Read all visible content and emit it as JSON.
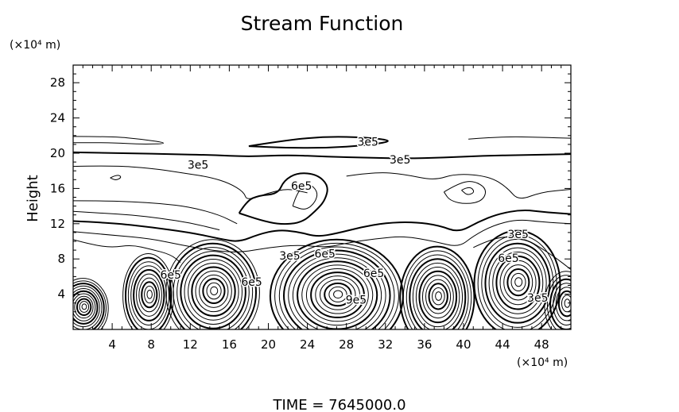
{
  "chart_data": {
    "type": "contour",
    "title": "Stream Function",
    "ylabel": "Height",
    "x_unit": "(×10⁴ m)",
    "y_unit": "(×10⁴ m)",
    "xlim": [
      0,
      51
    ],
    "ylim": [
      0,
      30
    ],
    "x_ticks": [
      4,
      8,
      12,
      16,
      20,
      24,
      28,
      32,
      36,
      40,
      44,
      48
    ],
    "y_ticks": [
      4,
      8,
      12,
      16,
      20,
      24,
      28
    ],
    "contour_labels": [
      {
        "text": "3e5",
        "x": 30.2,
        "y": 21.3
      },
      {
        "text": "3e5",
        "x": 12.8,
        "y": 18.7
      },
      {
        "text": "3e5",
        "x": 33.5,
        "y": 19.3
      },
      {
        "text": "6e5",
        "x": 23.4,
        "y": 16.3
      },
      {
        "text": "3e5",
        "x": 22.2,
        "y": 8.4
      },
      {
        "text": "6e5",
        "x": 25.8,
        "y": 8.6
      },
      {
        "text": "6e5",
        "x": 44.6,
        "y": 8.1
      },
      {
        "text": "3e5",
        "x": 45.6,
        "y": 10.8
      },
      {
        "text": "6e5",
        "x": 18.3,
        "y": 5.4
      },
      {
        "text": "6e5",
        "x": 30.8,
        "y": 6.4
      },
      {
        "text": "6e5",
        "x": 10.0,
        "y": 6.2
      },
      {
        "text": "9e5",
        "x": 29.0,
        "y": 3.4
      },
      {
        "text": "3e5",
        "x": 47.6,
        "y": 3.6
      }
    ],
    "vortices": [
      {
        "x": 1.0,
        "y": 2.4,
        "rx": 2.6,
        "ry": 3.4,
        "n": 11
      },
      {
        "x": 7.7,
        "y": 3.8,
        "rx": 2.6,
        "ry": 4.8,
        "n": 10
      },
      {
        "x": 14.3,
        "y": 4.2,
        "rx": 4.8,
        "ry": 6.0,
        "n": 13
      },
      {
        "x": 27.0,
        "y": 3.8,
        "rx": 6.8,
        "ry": 6.4,
        "n": 15
      },
      {
        "x": 37.3,
        "y": 3.6,
        "rx": 3.8,
        "ry": 5.8,
        "n": 12
      },
      {
        "x": 45.5,
        "y": 5.2,
        "rx": 4.4,
        "ry": 6.0,
        "n": 12
      },
      {
        "x": 50.5,
        "y": 2.8,
        "rx": 2.2,
        "ry": 3.8,
        "n": 8
      }
    ],
    "contour_lines": [
      {
        "w": 2,
        "pts": [
          [
            0,
            20.1
          ],
          [
            6,
            20.0
          ],
          [
            10,
            19.9
          ],
          [
            14,
            19.8
          ],
          [
            18,
            19.6
          ],
          [
            22,
            19.8
          ],
          [
            26,
            19.6
          ],
          [
            30,
            19.5
          ],
          [
            34,
            19.4
          ],
          [
            38,
            19.5
          ],
          [
            42,
            19.7
          ],
          [
            46,
            19.8
          ],
          [
            51,
            19.9
          ]
        ]
      },
      {
        "w": 2,
        "pts": [
          [
            18,
            20.8
          ],
          [
            22,
            21.5
          ],
          [
            26,
            21.9
          ],
          [
            30,
            21.8
          ],
          [
            33,
            21.4
          ],
          [
            30,
            20.9
          ],
          [
            26,
            20.6
          ],
          [
            22,
            20.6
          ],
          [
            18,
            20.8
          ]
        ]
      },
      {
        "w": 1,
        "pts": [
          [
            0,
            21.9
          ],
          [
            4,
            21.9
          ],
          [
            7,
            21.6
          ],
          [
            10,
            21.1
          ],
          [
            7,
            21.0
          ],
          [
            4,
            21.2
          ],
          [
            0,
            21.2
          ]
        ]
      },
      {
        "w": 1,
        "pts": [
          [
            40.5,
            21.6
          ],
          [
            44,
            21.9
          ],
          [
            48,
            21.8
          ],
          [
            51,
            21.7
          ]
        ]
      },
      {
        "w": 1,
        "pts": [
          [
            3.8,
            17.2
          ],
          [
            4.5,
            17.6
          ],
          [
            5.0,
            17.3
          ],
          [
            4.4,
            16.9
          ],
          [
            3.8,
            17.2
          ]
        ]
      },
      {
        "w": 1,
        "pts": [
          [
            0,
            18.5
          ],
          [
            4,
            18.6
          ],
          [
            8,
            18.3
          ],
          [
            11,
            17.8
          ],
          [
            14,
            17.3
          ],
          [
            16,
            16.6
          ],
          [
            17.5,
            15.6
          ],
          [
            17.8,
            14.6
          ],
          [
            20,
            15.5
          ],
          [
            22,
            16.0
          ],
          [
            24,
            15.5
          ]
        ]
      },
      {
        "w": 2,
        "pts": [
          [
            17,
            13.2
          ],
          [
            17.8,
            14.6
          ],
          [
            19,
            15.2
          ],
          [
            21,
            15.4
          ],
          [
            21.6,
            16.9
          ],
          [
            23.0,
            17.8
          ],
          [
            25.0,
            17.6
          ],
          [
            26.2,
            16.3
          ],
          [
            25.8,
            14.6
          ],
          [
            24.8,
            13.4
          ],
          [
            23.4,
            12.1
          ],
          [
            21.2,
            11.9
          ],
          [
            19.2,
            12.4
          ],
          [
            17,
            13.2
          ]
        ]
      },
      {
        "w": 1,
        "pts": [
          [
            22.5,
            14.0
          ],
          [
            23.0,
            15.8
          ],
          [
            24.2,
            16.6
          ],
          [
            25.1,
            15.6
          ],
          [
            24.8,
            14.4
          ],
          [
            23.8,
            13.5
          ],
          [
            22.5,
            14.0
          ]
        ]
      },
      {
        "w": 1,
        "pts": [
          [
            38,
            15.6
          ],
          [
            39.5,
            16.6
          ],
          [
            41,
            16.9
          ],
          [
            42.4,
            16.0
          ],
          [
            42.0,
            14.6
          ],
          [
            40.3,
            14.2
          ],
          [
            38.6,
            14.6
          ],
          [
            38,
            15.6
          ]
        ]
      },
      {
        "w": 1,
        "pts": [
          [
            39.8,
            15.8
          ],
          [
            40.6,
            16.3
          ],
          [
            41.2,
            15.6
          ],
          [
            40.4,
            15.2
          ],
          [
            39.8,
            15.8
          ]
        ]
      },
      {
        "w": 1,
        "pts": [
          [
            28,
            17.4
          ],
          [
            31,
            17.9
          ],
          [
            34,
            17.6
          ],
          [
            37,
            16.9
          ],
          [
            39.2,
            17.7
          ],
          [
            42.6,
            17.4
          ],
          [
            44.5,
            16.1
          ],
          [
            45.6,
            14.6
          ],
          [
            48,
            15.6
          ],
          [
            51,
            15.9
          ]
        ]
      },
      {
        "w": 1,
        "pts": [
          [
            0,
            14.6
          ],
          [
            3,
            14.6
          ],
          [
            6,
            14.5
          ],
          [
            9,
            14.3
          ],
          [
            12,
            13.9
          ],
          [
            15,
            13.0
          ],
          [
            16.8,
            12.0
          ]
        ]
      },
      {
        "w": 2,
        "pts": [
          [
            0,
            12.3
          ],
          [
            4,
            12.1
          ],
          [
            8,
            11.6
          ],
          [
            12,
            11.0
          ],
          [
            15,
            10.3
          ],
          [
            17,
            9.9
          ],
          [
            19,
            10.8
          ],
          [
            21,
            11.3
          ],
          [
            23,
            11.1
          ],
          [
            25,
            10.5
          ],
          [
            27,
            10.9
          ],
          [
            29.5,
            11.6
          ],
          [
            32,
            12.1
          ],
          [
            35,
            12.2
          ],
          [
            37.5,
            11.8
          ],
          [
            39.5,
            11.0
          ],
          [
            41.5,
            12.2
          ],
          [
            43.5,
            13.1
          ],
          [
            46,
            13.6
          ],
          [
            48.5,
            13.3
          ],
          [
            51,
            13.1
          ]
        ]
      },
      {
        "w": 1,
        "pts": [
          [
            0,
            11.1
          ],
          [
            4,
            10.7
          ],
          [
            8,
            10.3
          ],
          [
            11,
            9.6
          ],
          [
            14,
            9.0
          ],
          [
            17,
            8.7
          ],
          [
            20,
            9.3
          ],
          [
            23,
            9.6
          ],
          [
            26,
            9.3
          ],
          [
            28,
            9.8
          ],
          [
            31,
            10.3
          ],
          [
            34,
            10.6
          ],
          [
            37,
            10.0
          ],
          [
            39.5,
            9.3
          ],
          [
            41,
            10.6
          ],
          [
            43,
            11.8
          ],
          [
            45.5,
            12.5
          ],
          [
            48,
            12.2
          ],
          [
            51,
            12.0
          ]
        ]
      },
      {
        "w": 1,
        "pts": [
          [
            0,
            13.4
          ],
          [
            3,
            13.2
          ],
          [
            6,
            13.0
          ],
          [
            9,
            12.6
          ],
          [
            12,
            12.1
          ],
          [
            15,
            11.3
          ]
        ]
      },
      {
        "w": 1,
        "pts": [
          [
            0,
            10.2
          ],
          [
            2,
            9.6
          ],
          [
            4,
            9.3
          ],
          [
            6,
            9.6
          ],
          [
            8,
            9.1
          ],
          [
            10,
            8.5
          ],
          [
            11,
            7.6
          ]
        ]
      },
      {
        "w": 1,
        "pts": [
          [
            41,
            9.3
          ],
          [
            42.5,
            10.1
          ],
          [
            44.5,
            10.6
          ],
          [
            46.5,
            10.2
          ],
          [
            48,
            9.2
          ],
          [
            49.5,
            8.1
          ],
          [
            51,
            6.8
          ]
        ]
      }
    ]
  },
  "footer": {
    "time_label": "TIME  =  7645000.0"
  }
}
